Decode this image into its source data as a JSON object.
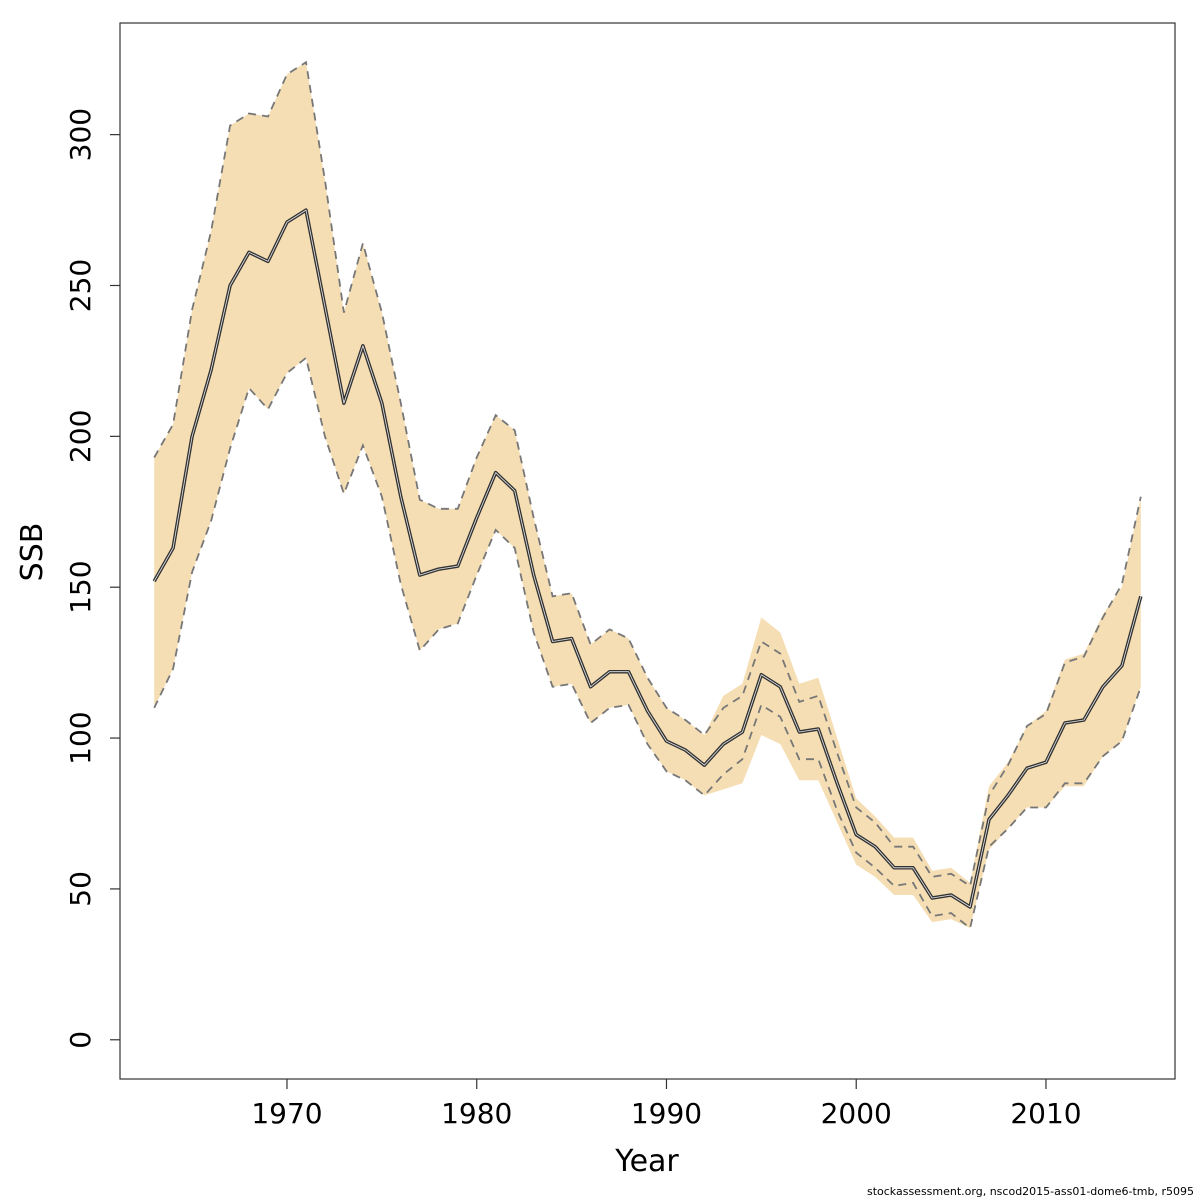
{
  "chart_data": {
    "type": "line",
    "xlabel": "Year",
    "ylabel": "SSB",
    "xlim": [
      1961.2,
      2016.8
    ],
    "ylim": [
      -13,
      337
    ],
    "x_ticks": [
      1970,
      1980,
      1990,
      2000,
      2010
    ],
    "y_ticks": [
      0,
      50,
      100,
      150,
      200,
      250,
      300
    ],
    "grid": false,
    "colors": {
      "band": "#f5deb3",
      "line": "#333333",
      "ci": "#777777",
      "frame": "#333333"
    },
    "x": [
      1963,
      1964,
      1965,
      1966,
      1967,
      1968,
      1969,
      1970,
      1971,
      1972,
      1973,
      1974,
      1975,
      1976,
      1977,
      1978,
      1979,
      1980,
      1981,
      1982,
      1983,
      1984,
      1985,
      1986,
      1987,
      1988,
      1989,
      1990,
      1991,
      1992,
      1993,
      1994,
      1995,
      1996,
      1997,
      1998,
      1999,
      2000,
      2001,
      2002,
      2003,
      2004,
      2005,
      2006,
      2007,
      2008,
      2009,
      2010,
      2011,
      2012,
      2013,
      2014,
      2015
    ],
    "series": [
      {
        "role": "estimate",
        "values": [
          152,
          163,
          200,
          222,
          250,
          261,
          258,
          271,
          275,
          243,
          211,
          230,
          211,
          180,
          154,
          156,
          157,
          173,
          188,
          182,
          154,
          132,
          133,
          117,
          122,
          122,
          109,
          99,
          96,
          91,
          98,
          102,
          121,
          117,
          102,
          103,
          85,
          68,
          64,
          57,
          57,
          47,
          48,
          44,
          73,
          81,
          90,
          92,
          105,
          106,
          117,
          124,
          147
        ]
      },
      {
        "role": "upper_ci",
        "values": [
          193,
          204,
          242,
          268,
          303,
          307,
          306,
          320,
          324,
          285,
          241,
          264,
          241,
          211,
          179,
          176,
          176,
          193,
          207,
          202,
          173,
          147,
          148,
          131,
          136,
          133,
          120,
          110,
          106,
          101,
          110,
          114,
          132,
          128,
          112,
          114,
          95,
          77,
          72,
          64,
          64,
          54,
          55,
          51,
          81,
          91,
          104,
          108,
          125,
          127,
          140,
          151,
          180
        ]
      },
      {
        "role": "lower_ci",
        "values": [
          110,
          123,
          155,
          172,
          196,
          216,
          209,
          221,
          226,
          200,
          181,
          197,
          180,
          151,
          129,
          136,
          138,
          154,
          169,
          163,
          135,
          117,
          118,
          105,
          110,
          111,
          98,
          89,
          86,
          81,
          88,
          93,
          111,
          107,
          93,
          93,
          76,
          62,
          57,
          51,
          52,
          41,
          42,
          37,
          64,
          70,
          77,
          77,
          85,
          85,
          94,
          99,
          117
        ]
      },
      {
        "role": "band_upper",
        "values": [
          193,
          204,
          242,
          268,
          303,
          307,
          306,
          320,
          324,
          285,
          241,
          264,
          241,
          211,
          179,
          176,
          176,
          193,
          207,
          202,
          173,
          147,
          148,
          131,
          136,
          133,
          120,
          110,
          106,
          101,
          114,
          118,
          140,
          135,
          118,
          120,
          100,
          80,
          74,
          67,
          67,
          56,
          57,
          52,
          84,
          92,
          104,
          109,
          126,
          128,
          141,
          150,
          180
        ]
      },
      {
        "role": "band_lower",
        "values": [
          110,
          123,
          155,
          172,
          196,
          216,
          209,
          221,
          226,
          200,
          181,
          197,
          180,
          151,
          129,
          136,
          138,
          154,
          169,
          163,
          135,
          117,
          118,
          105,
          110,
          111,
          98,
          89,
          86,
          81,
          83,
          85,
          101,
          98,
          86,
          86,
          72,
          58,
          54,
          48,
          48,
          39,
          40,
          37,
          63,
          70,
          77,
          77,
          84,
          84,
          94,
          99,
          117
        ]
      }
    ]
  },
  "footer_text": "stockassessment.org, nscod2015-ass01-dome6-tmb, r5095"
}
